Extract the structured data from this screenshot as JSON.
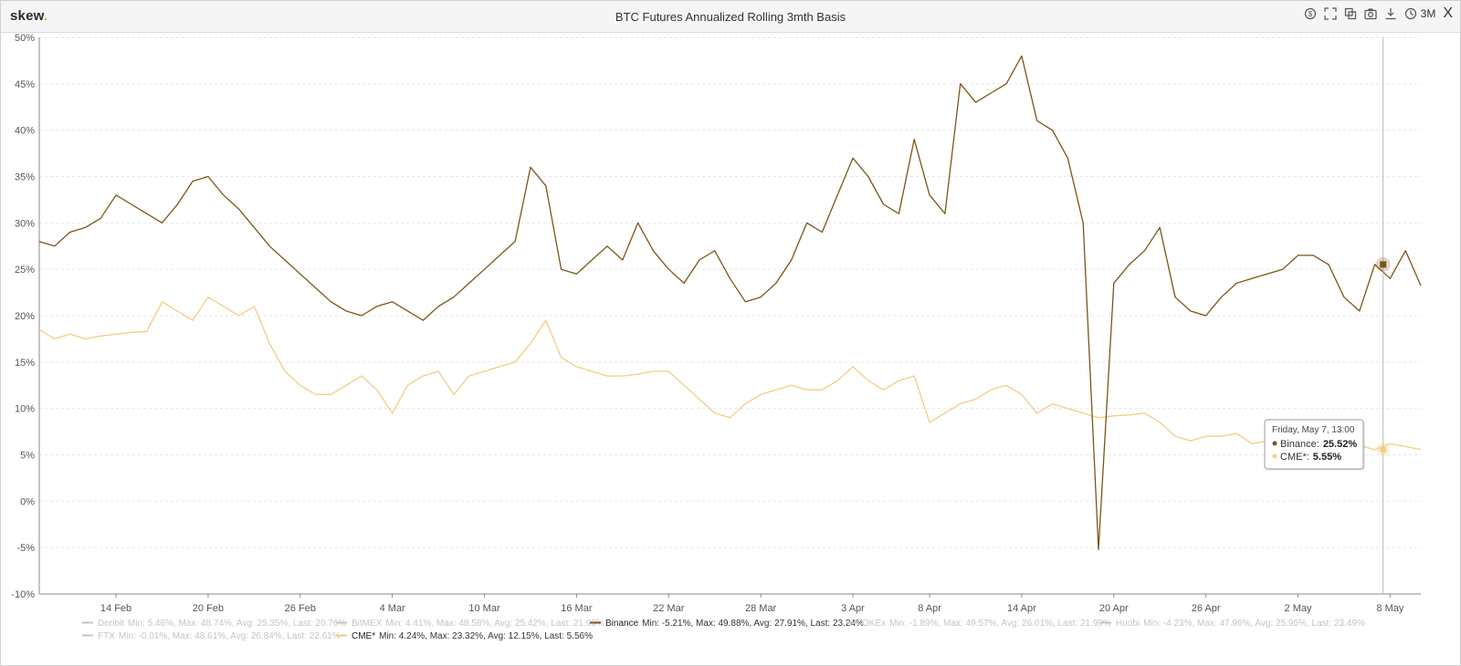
{
  "header": {
    "logo": "skew",
    "logo_dot": ".",
    "title": "BTC Futures Annualized Rolling 3mth Basis",
    "range_label": "3M",
    "close_label": "X",
    "icons": [
      "dollar-icon",
      "fullscreen-icon",
      "copy-icon",
      "camera-icon",
      "download-icon",
      "clock-icon"
    ]
  },
  "colors": {
    "binance": "#7a5618",
    "cme": "#f3cd83",
    "grid": "#e6e6e6",
    "inactive": "#c4c4c4"
  },
  "tooltip": {
    "date": "Friday, May 7, 13:00",
    "items": [
      {
        "label": "Binance:",
        "value": "25.52%"
      },
      {
        "label": "CME*:",
        "value": "5.55%"
      }
    ]
  },
  "chart_data": {
    "type": "line",
    "title": "BTC Futures Annualized Rolling 3mth Basis",
    "xlabel": "",
    "ylabel": "",
    "ylim": [
      -10,
      50
    ],
    "yticks": [
      "50%",
      "45%",
      "40%",
      "35%",
      "30%",
      "25%",
      "20%",
      "15%",
      "10%",
      "5%",
      "0%",
      "-5%",
      "-10%"
    ],
    "xticks": [
      "14 Feb",
      "20 Feb",
      "26 Feb",
      "4 Mar",
      "10 Mar",
      "16 Mar",
      "22 Mar",
      "28 Mar",
      "3 Apr",
      "8 Apr",
      "14 Apr",
      "20 Apr",
      "26 Apr",
      "2 May",
      "8 May"
    ],
    "x_range": [
      "2021-02-09",
      "2021-05-10"
    ],
    "grid": true,
    "legend_position": "bottom",
    "series": [
      {
        "name": "Binance",
        "x": [
          "2021-02-09",
          "2021-02-10",
          "2021-02-11",
          "2021-02-12",
          "2021-02-13",
          "2021-02-14",
          "2021-02-15",
          "2021-02-16",
          "2021-02-17",
          "2021-02-18",
          "2021-02-19",
          "2021-02-20",
          "2021-02-21",
          "2021-02-22",
          "2021-02-23",
          "2021-02-24",
          "2021-02-25",
          "2021-02-26",
          "2021-02-27",
          "2021-02-28",
          "2021-03-01",
          "2021-03-02",
          "2021-03-03",
          "2021-03-04",
          "2021-03-05",
          "2021-03-06",
          "2021-03-07",
          "2021-03-08",
          "2021-03-09",
          "2021-03-10",
          "2021-03-11",
          "2021-03-12",
          "2021-03-13",
          "2021-03-14",
          "2021-03-15",
          "2021-03-16",
          "2021-03-17",
          "2021-03-18",
          "2021-03-19",
          "2021-03-20",
          "2021-03-21",
          "2021-03-22",
          "2021-03-23",
          "2021-03-24",
          "2021-03-25",
          "2021-03-26",
          "2021-03-27",
          "2021-03-28",
          "2021-03-29",
          "2021-03-30",
          "2021-03-31",
          "2021-04-01",
          "2021-04-02",
          "2021-04-03",
          "2021-04-04",
          "2021-04-05",
          "2021-04-06",
          "2021-04-07",
          "2021-04-08",
          "2021-04-09",
          "2021-04-10",
          "2021-04-11",
          "2021-04-12",
          "2021-04-13",
          "2021-04-14",
          "2021-04-15",
          "2021-04-16",
          "2021-04-17",
          "2021-04-18",
          "2021-04-19",
          "2021-04-20",
          "2021-04-21",
          "2021-04-22",
          "2021-04-23",
          "2021-04-24",
          "2021-04-25",
          "2021-04-26",
          "2021-04-27",
          "2021-04-28",
          "2021-04-29",
          "2021-04-30",
          "2021-05-01",
          "2021-05-02",
          "2021-05-03",
          "2021-05-04",
          "2021-05-05",
          "2021-05-06",
          "2021-05-07",
          "2021-05-08",
          "2021-05-09",
          "2021-05-10"
        ],
        "values": [
          28,
          27.5,
          29,
          29.5,
          30.5,
          33,
          32,
          31,
          30,
          32,
          34.5,
          35,
          33,
          31.5,
          29.5,
          27.5,
          26,
          24.5,
          23,
          21.5,
          20.5,
          20,
          21,
          21.5,
          20.5,
          19.5,
          21,
          22,
          23.5,
          25,
          26.5,
          28,
          36,
          34,
          25,
          24.5,
          26,
          27.5,
          26,
          30,
          27,
          25,
          23.5,
          26,
          27,
          24,
          21.5,
          22,
          23.5,
          26,
          30,
          29,
          33,
          37,
          35,
          32,
          31,
          39,
          33,
          31,
          45,
          43,
          44,
          45,
          48,
          41,
          40,
          37,
          30,
          -5.21,
          23.5,
          25.5,
          27,
          29.5,
          22,
          20.5,
          20,
          22,
          23.5,
          24,
          24.5,
          25,
          26.5,
          26.5,
          25.5,
          22,
          20.5,
          25.52,
          24,
          27,
          23.24
        ]
      },
      {
        "name": "CME*",
        "x": [
          "2021-02-09",
          "2021-02-10",
          "2021-02-11",
          "2021-02-12",
          "2021-02-13",
          "2021-02-14",
          "2021-02-15",
          "2021-02-16",
          "2021-02-17",
          "2021-02-18",
          "2021-02-19",
          "2021-02-20",
          "2021-02-21",
          "2021-02-22",
          "2021-02-23",
          "2021-02-24",
          "2021-02-25",
          "2021-02-26",
          "2021-02-27",
          "2021-02-28",
          "2021-03-01",
          "2021-03-02",
          "2021-03-03",
          "2021-03-04",
          "2021-03-05",
          "2021-03-06",
          "2021-03-07",
          "2021-03-08",
          "2021-03-09",
          "2021-03-10",
          "2021-03-11",
          "2021-03-12",
          "2021-03-13",
          "2021-03-14",
          "2021-03-15",
          "2021-03-16",
          "2021-03-17",
          "2021-03-18",
          "2021-03-19",
          "2021-03-20",
          "2021-03-21",
          "2021-03-22",
          "2021-03-23",
          "2021-03-24",
          "2021-03-25",
          "2021-03-26",
          "2021-03-27",
          "2021-03-28",
          "2021-03-29",
          "2021-03-30",
          "2021-03-31",
          "2021-04-01",
          "2021-04-02",
          "2021-04-03",
          "2021-04-04",
          "2021-04-05",
          "2021-04-06",
          "2021-04-07",
          "2021-04-08",
          "2021-04-09",
          "2021-04-10",
          "2021-04-11",
          "2021-04-12",
          "2021-04-13",
          "2021-04-14",
          "2021-04-15",
          "2021-04-16",
          "2021-04-17",
          "2021-04-18",
          "2021-04-19",
          "2021-04-20",
          "2021-04-21",
          "2021-04-22",
          "2021-04-23",
          "2021-04-24",
          "2021-04-25",
          "2021-04-26",
          "2021-04-27",
          "2021-04-28",
          "2021-04-29",
          "2021-04-30",
          "2021-05-01",
          "2021-05-02",
          "2021-05-03",
          "2021-05-04",
          "2021-05-05",
          "2021-05-06",
          "2021-05-07",
          "2021-05-08",
          "2021-05-09",
          "2021-05-10"
        ],
        "values": [
          18.5,
          17.5,
          18,
          17.5,
          17.8,
          18,
          18.2,
          18.3,
          21.5,
          20.5,
          19.5,
          22,
          21,
          20,
          21,
          17,
          14,
          12.5,
          11.5,
          11.5,
          12.5,
          13.5,
          12,
          9.5,
          12.5,
          13.5,
          14,
          11.5,
          13.5,
          14,
          14.5,
          15,
          17,
          19.5,
          15.5,
          14.5,
          14,
          13.5,
          13.5,
          13.7,
          14,
          14,
          12.5,
          11,
          9.5,
          9,
          10.5,
          11.5,
          12,
          12.5,
          12,
          12,
          13,
          14.5,
          13,
          12,
          13,
          13.5,
          8.5,
          9.5,
          10.5,
          11,
          12,
          12.5,
          11.5,
          9.5,
          10.5,
          10,
          9.5,
          9,
          9.2,
          9.3,
          9.5,
          8.5,
          7,
          6.5,
          7,
          7,
          7.3,
          6.2,
          6.5,
          6.6,
          6.5,
          6.2,
          6.4,
          6.5,
          6,
          5.55,
          6.2,
          5.9,
          5.56
        ]
      }
    ],
    "legend": [
      {
        "name": "Deribit",
        "stats": "Min: 5.46%, Max: 48.74%, Avg: 25.35%, Last: 20.76%",
        "active": false
      },
      {
        "name": "BitMEX",
        "stats": "Min: 4.41%, Max: 48.58%, Avg: 25.42%, Last: 21.93%",
        "active": false
      },
      {
        "name": "Binance",
        "stats": "Min: -5.21%, Max: 49.88%, Avg: 27.91%, Last: 23.24%",
        "active": true
      },
      {
        "name": "OKEx",
        "stats": "Min: -1.89%, Max: 49.57%, Avg: 26.01%, Last: 21.99%",
        "active": false
      },
      {
        "name": "Huobi",
        "stats": "Min: -4.23%, Max: 47.96%, Avg: 25.95%, Last: 23.49%",
        "active": false
      },
      {
        "name": "FTX",
        "stats": "Min: -0.01%, Max: 48.61%, Avg: 26.84%, Last: 22.61%",
        "active": false
      },
      {
        "name": "CME*",
        "stats": "Min: 4.24%, Max: 23.32%, Avg: 12.15%, Last: 5.56%",
        "active": true
      }
    ]
  }
}
